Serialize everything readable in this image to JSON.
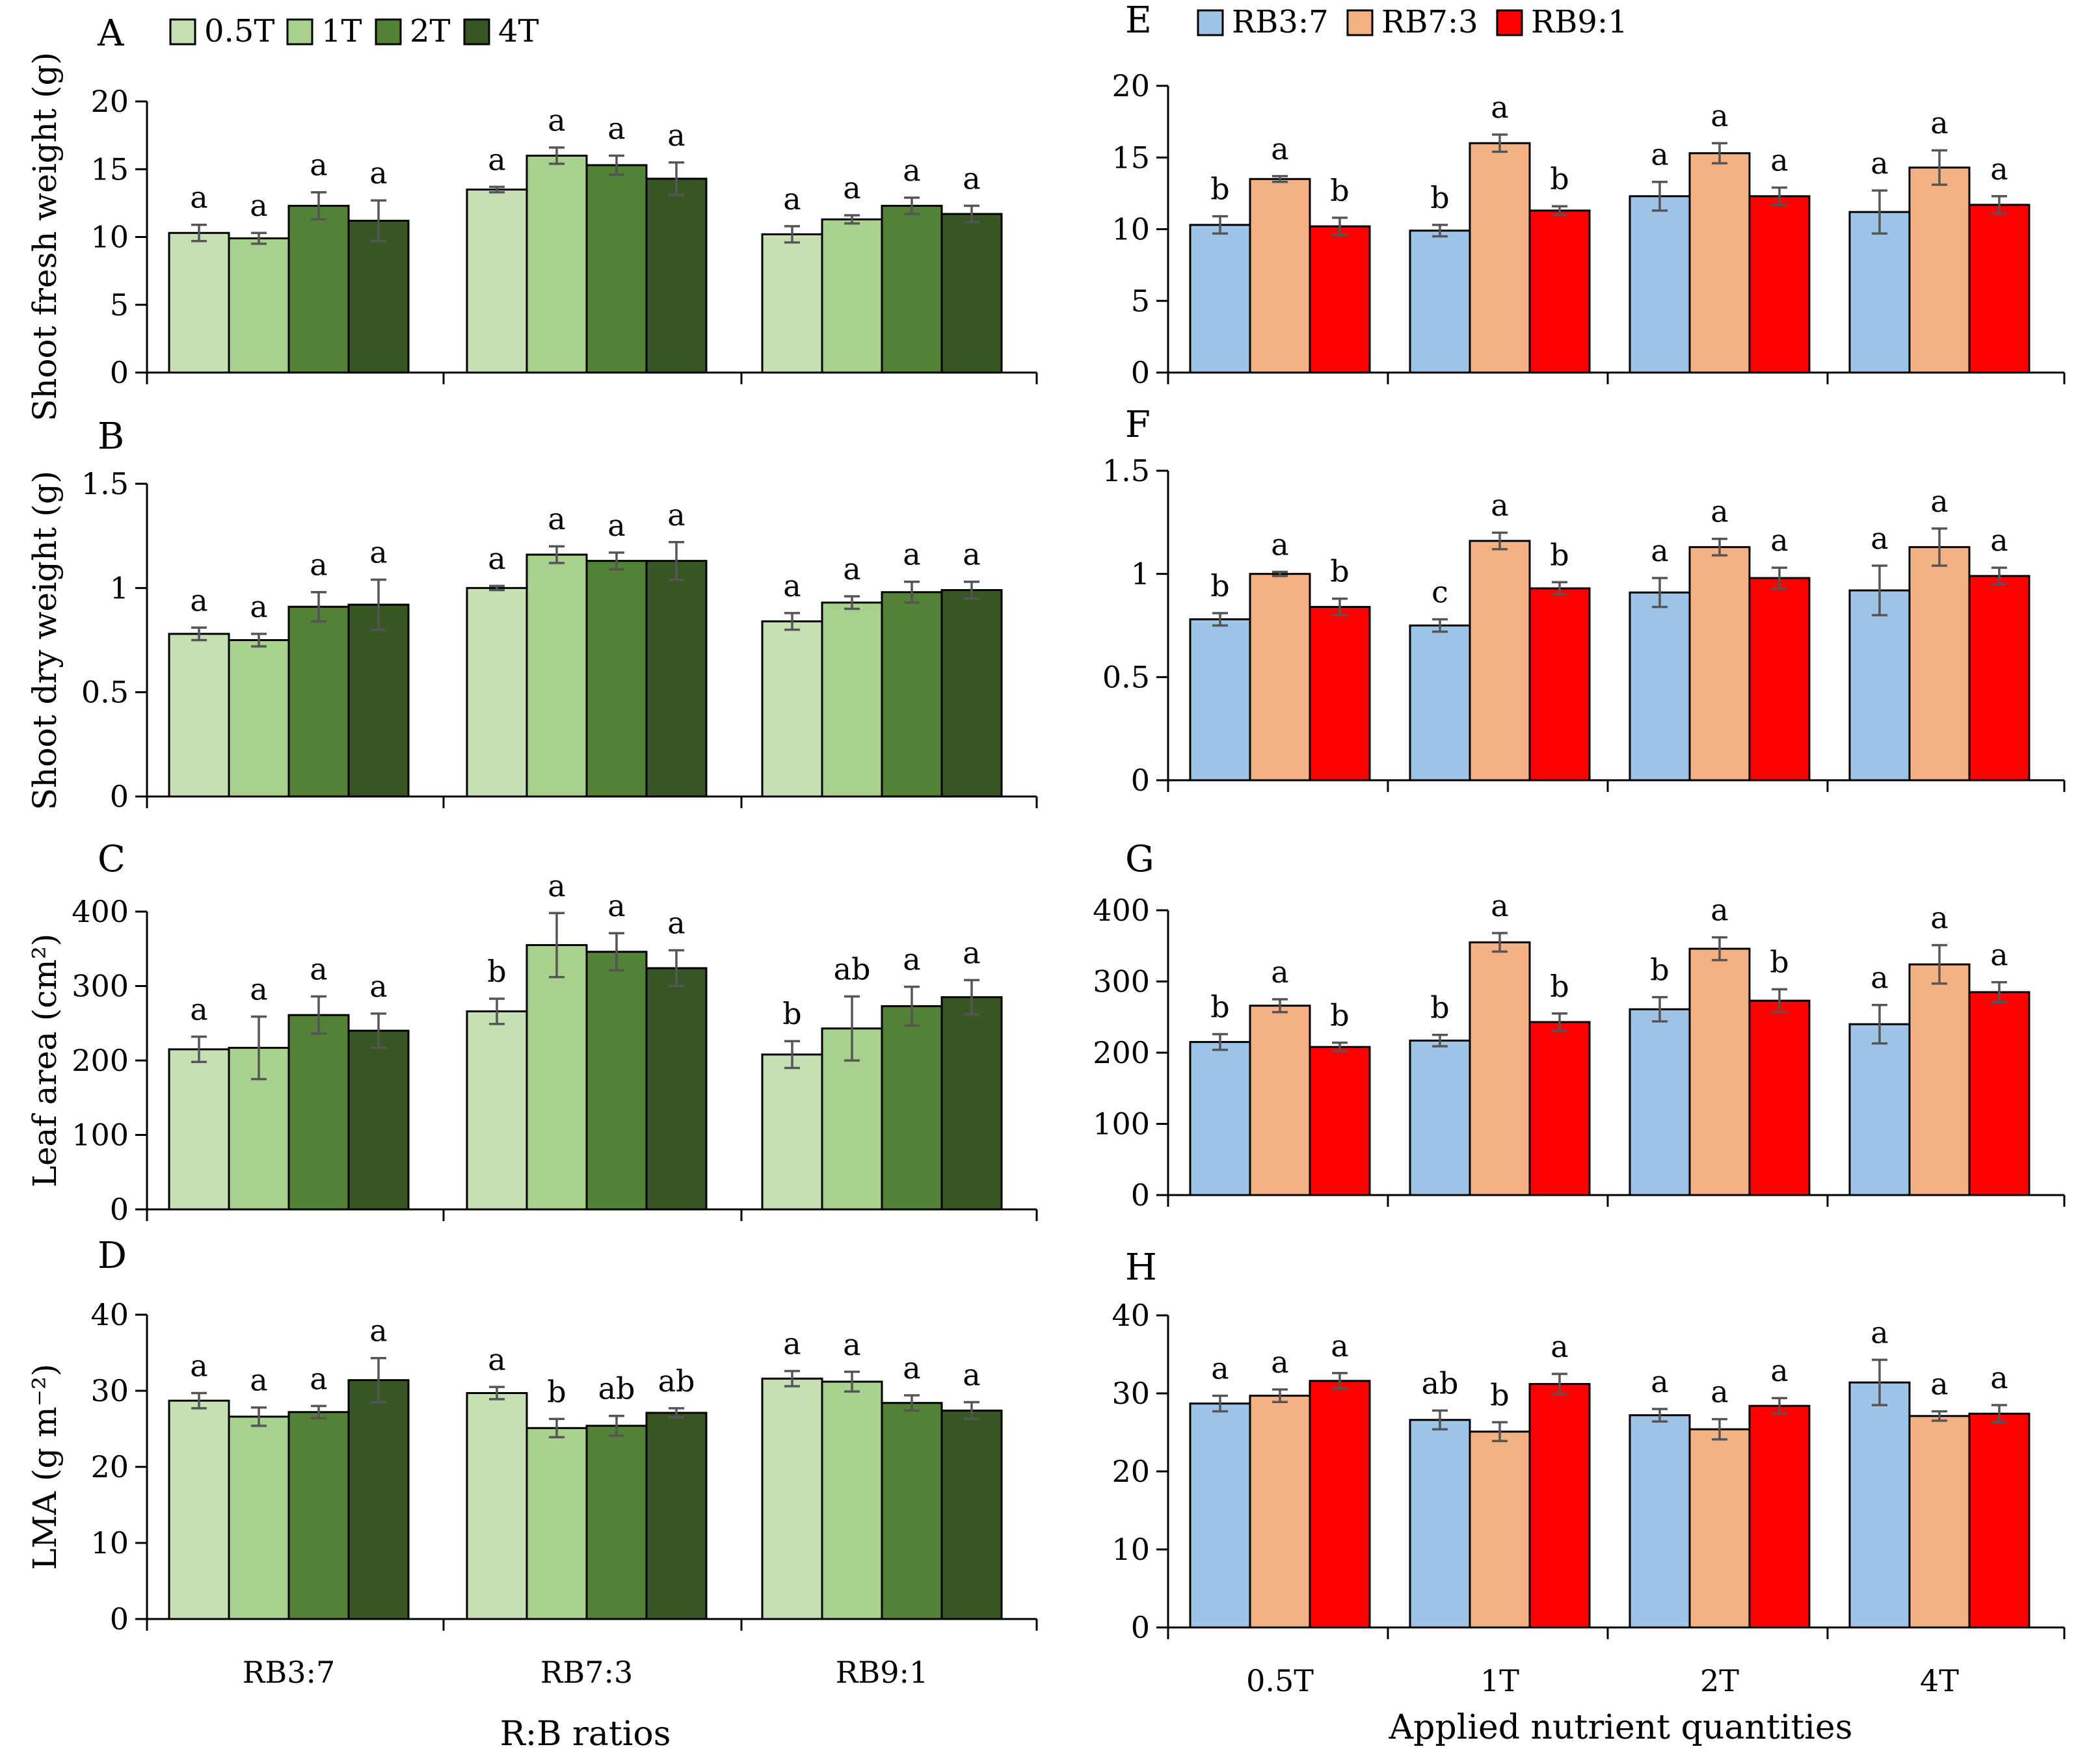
{
  "colors": {
    "T0_5": "#c6e0b4",
    "T1": "#a9d18e",
    "T2": "#538135",
    "T4": "#375623",
    "RB37": "#9dc3e6",
    "RB73": "#f4b183",
    "RB91": "#ff0000",
    "error_bar": "#555555"
  },
  "axis_titles": {
    "left_x": "R:B ratios",
    "right_x": "Applied nutrient quantities"
  },
  "chart_data": [
    {
      "panel": "A",
      "type": "bar",
      "title": "",
      "ylabel": "Shoot fresh weight (g)",
      "xlabel": "",
      "ylim": [
        0,
        20
      ],
      "yticks": [
        "0",
        "5",
        "10",
        "15",
        "20"
      ],
      "categories": [
        "RB3:7",
        "RB7:3",
        "RB9:1"
      ],
      "show_categories": false,
      "legend": [
        {
          "label": "0.5T",
          "color_key": "T0_5"
        },
        {
          "label": "1T",
          "color_key": "T1"
        },
        {
          "label": "2T",
          "color_key": "T2"
        },
        {
          "label": "4T",
          "color_key": "T4"
        }
      ],
      "series": [
        {
          "name": "0.5T",
          "color_key": "T0_5",
          "values": [
            10.3,
            13.5,
            10.2
          ],
          "errors": [
            0.6,
            0.2,
            0.6
          ],
          "letters": [
            "a",
            "a",
            "a"
          ]
        },
        {
          "name": "1T",
          "color_key": "T1",
          "values": [
            9.9,
            16.0,
            11.3
          ],
          "errors": [
            0.4,
            0.6,
            0.3
          ],
          "letters": [
            "a",
            "a",
            "a"
          ]
        },
        {
          "name": "2T",
          "color_key": "T2",
          "values": [
            12.3,
            15.3,
            12.3
          ],
          "errors": [
            1.0,
            0.7,
            0.6
          ],
          "letters": [
            "a",
            "a",
            "a"
          ]
        },
        {
          "name": "4T",
          "color_key": "T4",
          "values": [
            11.2,
            14.3,
            11.7
          ],
          "errors": [
            1.5,
            1.2,
            0.6
          ],
          "letters": [
            "a",
            "a",
            "a"
          ]
        }
      ]
    },
    {
      "panel": "B",
      "type": "bar",
      "title": "",
      "ylabel": "Shoot dry weight (g)",
      "xlabel": "",
      "ylim": [
        0,
        1.5
      ],
      "yticks": [
        "0",
        "0.5",
        "1",
        "1.5"
      ],
      "categories": [
        "RB3:7",
        "RB7:3",
        "RB9:1"
      ],
      "show_categories": false,
      "series": [
        {
          "name": "0.5T",
          "color_key": "T0_5",
          "values": [
            0.78,
            1.0,
            0.84
          ],
          "errors": [
            0.03,
            0.01,
            0.04
          ],
          "letters": [
            "a",
            "a",
            "a"
          ]
        },
        {
          "name": "1T",
          "color_key": "T1",
          "values": [
            0.75,
            1.16,
            0.93
          ],
          "errors": [
            0.03,
            0.04,
            0.03
          ],
          "letters": [
            "a",
            "a",
            "a"
          ]
        },
        {
          "name": "2T",
          "color_key": "T2",
          "values": [
            0.91,
            1.13,
            0.98
          ],
          "errors": [
            0.07,
            0.04,
            0.05
          ],
          "letters": [
            "a",
            "a",
            "a"
          ]
        },
        {
          "name": "4T",
          "color_key": "T4",
          "values": [
            0.92,
            1.13,
            0.99
          ],
          "errors": [
            0.12,
            0.09,
            0.04
          ],
          "letters": [
            "a",
            "a",
            "a"
          ]
        }
      ]
    },
    {
      "panel": "C",
      "type": "bar",
      "title": "",
      "ylabel": "Leaf area (cm²)",
      "xlabel": "",
      "ylim": [
        0,
        400
      ],
      "yticks": [
        "0",
        "100",
        "200",
        "300",
        "400"
      ],
      "categories": [
        "RB3:7",
        "RB7:3",
        "RB9:1"
      ],
      "show_categories": false,
      "series": [
        {
          "name": "0.5T",
          "color_key": "T0_5",
          "values": [
            215,
            266,
            208
          ],
          "errors": [
            17,
            17,
            18
          ],
          "letters": [
            "a",
            "b",
            "b"
          ]
        },
        {
          "name": "1T",
          "color_key": "T1",
          "values": [
            217,
            355,
            243
          ],
          "errors": [
            42,
            43,
            43
          ],
          "letters": [
            "a",
            "a",
            "ab"
          ]
        },
        {
          "name": "2T",
          "color_key": "T2",
          "values": [
            261,
            346,
            273
          ],
          "errors": [
            25,
            25,
            26
          ],
          "letters": [
            "a",
            "a",
            "a"
          ]
        },
        {
          "name": "4T",
          "color_key": "T4",
          "values": [
            240,
            324,
            285
          ],
          "errors": [
            23,
            24,
            23
          ],
          "letters": [
            "a",
            "a",
            "a"
          ]
        }
      ]
    },
    {
      "panel": "D",
      "type": "bar",
      "title": "",
      "ylabel": "LMA (g m⁻²)",
      "xlabel": "R:B ratios",
      "ylim": [
        0,
        40
      ],
      "yticks": [
        "0",
        "10",
        "20",
        "30",
        "40"
      ],
      "categories": [
        "RB3:7",
        "RB7:3",
        "RB9:1"
      ],
      "show_categories": true,
      "series": [
        {
          "name": "0.5T",
          "color_key": "T0_5",
          "values": [
            28.7,
            29.7,
            31.6
          ],
          "errors": [
            1.0,
            0.8,
            1.0
          ],
          "letters": [
            "a",
            "a",
            "a"
          ]
        },
        {
          "name": "1T",
          "color_key": "T1",
          "values": [
            26.6,
            25.1,
            31.2
          ],
          "errors": [
            1.2,
            1.2,
            1.3
          ],
          "letters": [
            "a",
            "b",
            "a"
          ]
        },
        {
          "name": "2T",
          "color_key": "T2",
          "values": [
            27.2,
            25.4,
            28.4
          ],
          "errors": [
            0.8,
            1.3,
            1.0
          ],
          "letters": [
            "a",
            "ab",
            "a"
          ]
        },
        {
          "name": "4T",
          "color_key": "T4",
          "values": [
            31.4,
            27.1,
            27.4
          ],
          "errors": [
            2.9,
            0.6,
            1.1
          ],
          "letters": [
            "a",
            "ab",
            "a"
          ]
        }
      ]
    },
    {
      "panel": "E",
      "type": "bar",
      "title": "",
      "ylabel": "",
      "xlabel": "",
      "ylim": [
        0,
        20
      ],
      "yticks": [
        "0",
        "5",
        "10",
        "15",
        "20"
      ],
      "categories": [
        "0.5T",
        "1T",
        "2T",
        "4T"
      ],
      "show_categories": false,
      "legend": [
        {
          "label": "RB3:7",
          "color_key": "RB37"
        },
        {
          "label": "RB7:3",
          "color_key": "RB73"
        },
        {
          "label": "RB9:1",
          "color_key": "RB91"
        }
      ],
      "series": [
        {
          "name": "RB3:7",
          "color_key": "RB37",
          "values": [
            10.3,
            9.9,
            12.3,
            11.2
          ],
          "errors": [
            0.6,
            0.4,
            1.0,
            1.5
          ],
          "letters": [
            "b",
            "b",
            "a",
            "a"
          ]
        },
        {
          "name": "RB7:3",
          "color_key": "RB73",
          "values": [
            13.5,
            16.0,
            15.3,
            14.3
          ],
          "errors": [
            0.2,
            0.6,
            0.7,
            1.2
          ],
          "letters": [
            "a",
            "a",
            "a",
            "a"
          ]
        },
        {
          "name": "RB9:1",
          "color_key": "RB91",
          "values": [
            10.2,
            11.3,
            12.3,
            11.7
          ],
          "errors": [
            0.6,
            0.3,
            0.6,
            0.6
          ],
          "letters": [
            "b",
            "b",
            "a",
            "a"
          ]
        }
      ]
    },
    {
      "panel": "F",
      "type": "bar",
      "title": "",
      "ylabel": "",
      "xlabel": "",
      "ylim": [
        0,
        1.5
      ],
      "yticks": [
        "0",
        "0.5",
        "1",
        "1.5"
      ],
      "categories": [
        "0.5T",
        "1T",
        "2T",
        "4T"
      ],
      "show_categories": false,
      "series": [
        {
          "name": "RB3:7",
          "color_key": "RB37",
          "values": [
            0.78,
            0.75,
            0.91,
            0.92
          ],
          "errors": [
            0.03,
            0.03,
            0.07,
            0.12
          ],
          "letters": [
            "b",
            "c",
            "a",
            "a"
          ]
        },
        {
          "name": "RB7:3",
          "color_key": "RB73",
          "values": [
            1.0,
            1.16,
            1.13,
            1.13
          ],
          "errors": [
            0.01,
            0.04,
            0.04,
            0.09
          ],
          "letters": [
            "a",
            "a",
            "a",
            "a"
          ]
        },
        {
          "name": "RB9:1",
          "color_key": "RB91",
          "values": [
            0.84,
            0.93,
            0.98,
            0.99
          ],
          "errors": [
            0.04,
            0.03,
            0.05,
            0.04
          ],
          "letters": [
            "b",
            "b",
            "a",
            "a"
          ]
        }
      ]
    },
    {
      "panel": "G",
      "type": "bar",
      "title": "",
      "ylabel": "",
      "xlabel": "",
      "ylim": [
        0,
        400
      ],
      "yticks": [
        "0",
        "100",
        "200",
        "300",
        "400"
      ],
      "categories": [
        "0.5T",
        "1T",
        "2T",
        "4T"
      ],
      "show_categories": false,
      "series": [
        {
          "name": "RB3:7",
          "color_key": "RB37",
          "values": [
            215,
            217,
            261,
            240
          ],
          "errors": [
            11,
            8,
            17,
            27
          ],
          "letters": [
            "b",
            "b",
            "b",
            "a"
          ]
        },
        {
          "name": "RB7:3",
          "color_key": "RB73",
          "values": [
            266,
            355,
            346,
            324
          ],
          "errors": [
            9,
            13,
            16,
            27
          ],
          "letters": [
            "a",
            "a",
            "a",
            "a"
          ]
        },
        {
          "name": "RB9:1",
          "color_key": "RB91",
          "values": [
            208,
            243,
            273,
            285
          ],
          "errors": [
            6,
            12,
            16,
            14
          ],
          "letters": [
            "b",
            "b",
            "b",
            "a"
          ]
        }
      ]
    },
    {
      "panel": "H",
      "type": "bar",
      "title": "",
      "ylabel": "",
      "xlabel": "Applied nutrient quantities",
      "ylim": [
        0,
        40
      ],
      "yticks": [
        "0",
        "10",
        "20",
        "30",
        "40"
      ],
      "categories": [
        "0.5T",
        "1T",
        "2T",
        "4T"
      ],
      "show_categories": true,
      "series": [
        {
          "name": "RB3:7",
          "color_key": "RB37",
          "values": [
            28.7,
            26.6,
            27.2,
            31.4
          ],
          "errors": [
            1.0,
            1.2,
            0.8,
            2.9
          ],
          "letters": [
            "a",
            "ab",
            "a",
            "a"
          ]
        },
        {
          "name": "RB7:3",
          "color_key": "RB73",
          "values": [
            29.7,
            25.1,
            25.4,
            27.1
          ],
          "errors": [
            0.8,
            1.2,
            1.3,
            0.6
          ],
          "letters": [
            "a",
            "b",
            "a",
            "a"
          ]
        },
        {
          "name": "RB9:1",
          "color_key": "RB91",
          "values": [
            31.6,
            31.2,
            28.4,
            27.4
          ],
          "errors": [
            1.0,
            1.3,
            1.0,
            1.1
          ],
          "letters": [
            "a",
            "a",
            "a",
            "a"
          ]
        }
      ]
    }
  ]
}
